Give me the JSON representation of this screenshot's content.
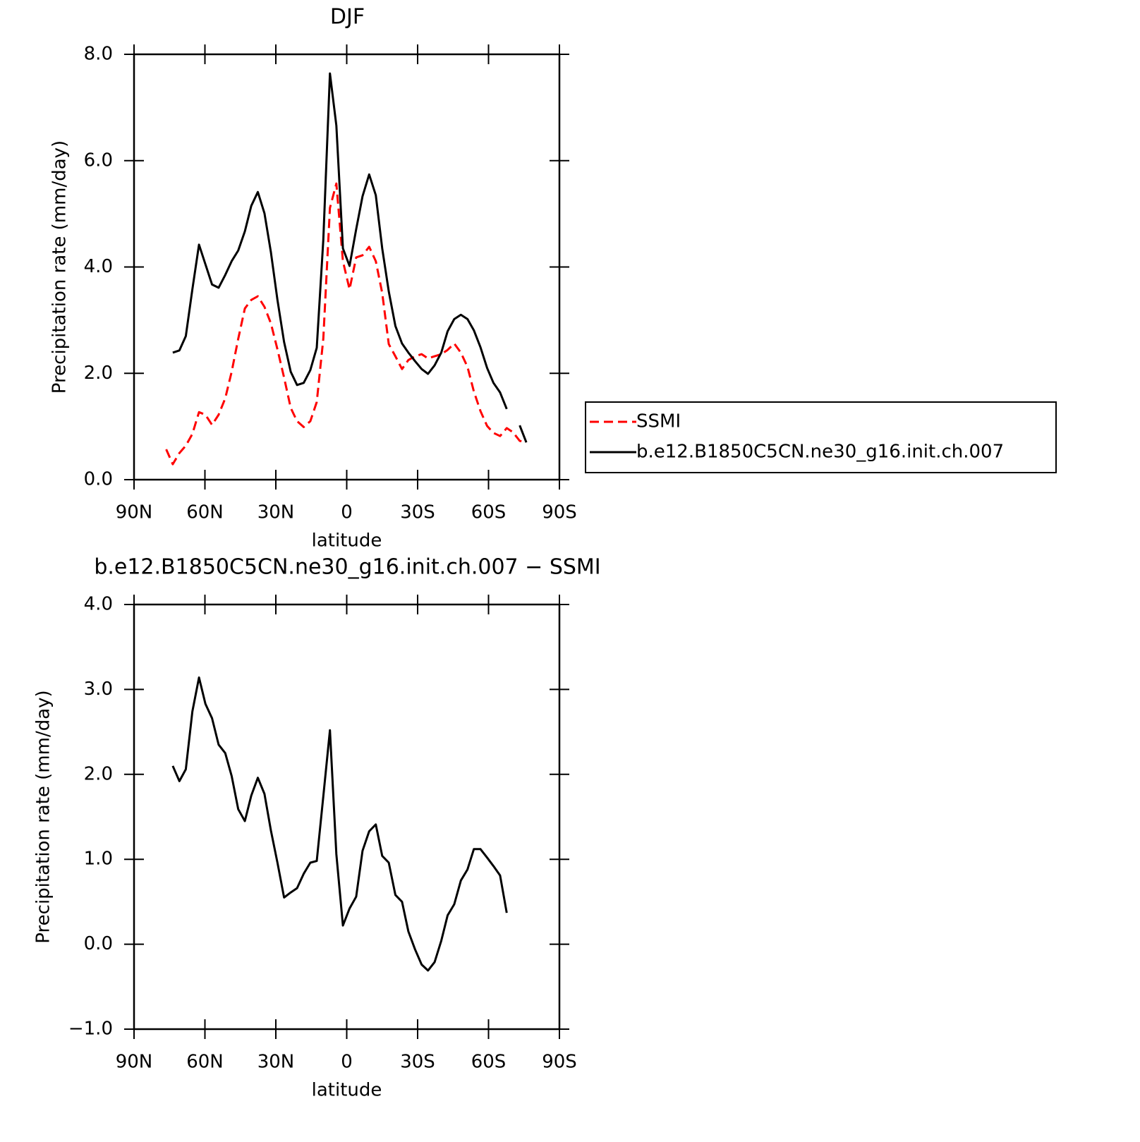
{
  "chart_data": [
    {
      "type": "line",
      "title": "DJF",
      "x_label": "latitude",
      "y_label": "Precipitation rate (mm/day)",
      "x": [
        76.4,
        73.6,
        70.8,
        68.1,
        65.3,
        62.5,
        59.8,
        57.0,
        54.2,
        51.4,
        48.7,
        45.9,
        43.1,
        40.4,
        37.6,
        34.8,
        32.1,
        29.3,
        26.5,
        23.7,
        21.0,
        18.2,
        15.4,
        12.7,
        9.9,
        7.1,
        4.4,
        1.6,
        -1.2,
        -4.0,
        -6.7,
        -9.5,
        -12.3,
        -15.0,
        -17.8,
        -20.6,
        -23.4,
        -26.1,
        -28.9,
        -31.7,
        -34.4,
        -37.2,
        -40.0,
        -42.7,
        -45.5,
        -48.3,
        -51.1,
        -53.8,
        -56.6,
        -59.4,
        -62.1,
        -64.9,
        -67.7,
        -70.4,
        -73.2,
        -76.0
      ],
      "xlim": [
        90,
        -90
      ],
      "xticks": [
        {
          "value": 90,
          "label": "90N"
        },
        {
          "value": 60,
          "label": "60N"
        },
        {
          "value": 30,
          "label": "30N"
        },
        0,
        {
          "value": -30,
          "label": "30S"
        },
        {
          "value": -60,
          "label": "60S"
        },
        {
          "value": -90,
          "label": "90S"
        }
      ],
      "ylim": [
        0,
        8
      ],
      "yticks": [
        {
          "value": 0,
          "label": "0.0"
        },
        {
          "value": 2,
          "label": "2.0"
        },
        {
          "value": 4,
          "label": "4.0"
        },
        {
          "value": 6,
          "label": "6.0"
        },
        {
          "value": 8,
          "label": "8.0"
        }
      ],
      "legend": "right",
      "series": [
        {
          "name": "SSMI",
          "color": "#ff0000",
          "line_style": "dashed",
          "values": [
            0.57,
            0.29,
            0.5,
            0.64,
            0.86,
            1.27,
            1.22,
            1.03,
            1.22,
            1.53,
            2.03,
            2.65,
            3.22,
            3.38,
            3.45,
            3.25,
            2.94,
            2.45,
            1.92,
            1.35,
            1.1,
            0.99,
            1.1,
            1.46,
            2.65,
            5.11,
            5.57,
            4.11,
            3.58,
            4.18,
            4.22,
            4.38,
            4.11,
            3.51,
            2.55,
            2.32,
            2.08,
            2.25,
            2.32,
            2.36,
            2.28,
            2.32,
            2.36,
            2.44,
            2.56,
            2.39,
            2.12,
            1.66,
            1.29,
            1.01,
            0.88,
            0.82,
            0.97,
            0.89,
            0.73,
            0.7
          ]
        },
        {
          "name": "b.e12.B1850C5CN.ne30_g16.init.ch.007",
          "color": "#000000",
          "line_style": "solid",
          "values": [
            null,
            2.39,
            2.43,
            2.7,
            3.58,
            4.42,
            4.05,
            3.67,
            3.61,
            3.85,
            4.11,
            4.31,
            4.67,
            5.15,
            5.41,
            5.01,
            4.28,
            3.38,
            2.59,
            2.03,
            1.78,
            1.82,
            2.06,
            2.48,
            4.51,
            7.64,
            6.66,
            4.35,
            4.02,
            4.71,
            5.33,
            5.74,
            5.35,
            4.35,
            3.54,
            2.89,
            2.56,
            2.39,
            2.23,
            2.08,
            1.99,
            2.15,
            2.39,
            2.79,
            3.02,
            3.1,
            3.02,
            2.81,
            2.49,
            2.1,
            1.82,
            1.64,
            1.33,
            null,
            1.02,
            0.7
          ]
        }
      ]
    },
    {
      "type": "line",
      "title": "b.e12.B1850C5CN.ne30_g16.init.ch.007 − SSMI",
      "x_label": "latitude",
      "y_label": "Precipitation rate (mm/day)",
      "x": [
        76.4,
        73.6,
        70.8,
        68.1,
        65.3,
        62.5,
        59.8,
        57.0,
        54.2,
        51.4,
        48.7,
        45.9,
        43.1,
        40.4,
        37.6,
        34.8,
        32.1,
        29.3,
        26.5,
        23.7,
        21.0,
        18.2,
        15.4,
        12.7,
        9.9,
        7.1,
        4.4,
        1.6,
        -1.2,
        -4.0,
        -6.7,
        -9.5,
        -12.3,
        -15.0,
        -17.8,
        -20.6,
        -23.4,
        -26.1,
        -28.9,
        -31.7,
        -34.4,
        -37.2,
        -40.0,
        -42.7,
        -45.5,
        -48.3,
        -51.1,
        -53.8,
        -56.6,
        -59.4,
        -62.1,
        -64.9,
        -67.7,
        -70.4,
        -73.2,
        -76.0
      ],
      "xlim": [
        90,
        -90
      ],
      "xticks": [
        {
          "value": 90,
          "label": "90N"
        },
        {
          "value": 60,
          "label": "60N"
        },
        {
          "value": 30,
          "label": "30N"
        },
        0,
        {
          "value": -30,
          "label": "30S"
        },
        {
          "value": -60,
          "label": "60S"
        },
        {
          "value": -90,
          "label": "90S"
        }
      ],
      "ylim": [
        -1,
        4
      ],
      "yticks": [
        {
          "value": -1,
          "label": "−1.0"
        },
        {
          "value": 0,
          "label": "0.0"
        },
        {
          "value": 1,
          "label": "1.0"
        },
        {
          "value": 2,
          "label": "2.0"
        },
        {
          "value": 3,
          "label": "3.0"
        },
        {
          "value": 4,
          "label": "4.0"
        }
      ],
      "series": [
        {
          "color": "#000000",
          "line_style": "solid",
          "values": [
            null,
            2.1,
            1.92,
            2.06,
            2.74,
            3.14,
            2.83,
            2.66,
            2.35,
            2.25,
            1.98,
            1.59,
            1.45,
            1.75,
            1.96,
            1.77,
            1.34,
            0.96,
            0.55,
            0.61,
            0.66,
            0.83,
            0.96,
            0.98,
            1.74,
            2.52,
            1.06,
            0.22,
            0.42,
            0.56,
            1.1,
            1.33,
            1.41,
            1.04,
            0.96,
            0.58,
            0.5,
            0.15,
            -0.06,
            -0.24,
            -0.31,
            -0.21,
            0.04,
            0.34,
            0.47,
            0.75,
            0.88,
            1.12,
            1.12,
            1.02,
            0.92,
            0.81,
            0.37,
            null,
            null,
            null
          ]
        }
      ]
    }
  ]
}
